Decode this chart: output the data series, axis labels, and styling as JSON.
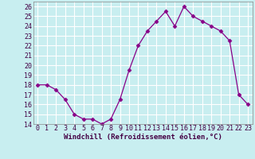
{
  "x": [
    0,
    1,
    2,
    3,
    4,
    5,
    6,
    7,
    8,
    9,
    10,
    11,
    12,
    13,
    14,
    15,
    16,
    17,
    18,
    19,
    20,
    21,
    22,
    23
  ],
  "y": [
    18.0,
    18.0,
    17.5,
    16.5,
    15.0,
    14.5,
    14.5,
    14.0,
    14.5,
    16.5,
    19.5,
    22.0,
    23.5,
    24.5,
    25.5,
    24.0,
    26.0,
    25.0,
    24.5,
    24.0,
    23.5,
    22.5,
    17.0,
    16.0
  ],
  "line_color": "#880088",
  "marker": "D",
  "marker_size": 2.5,
  "bg_color": "#c8eef0",
  "grid_color": "#ffffff",
  "xlabel": "Windchill (Refroidissement éolien,°C)",
  "xlabel_fontsize": 6.5,
  "tick_fontsize": 6.0,
  "ylim": [
    14,
    26.5
  ],
  "yticks": [
    14,
    15,
    16,
    17,
    18,
    19,
    20,
    21,
    22,
    23,
    24,
    25,
    26
  ],
  "xlim": [
    -0.5,
    23.5
  ],
  "xticks": [
    0,
    1,
    2,
    3,
    4,
    5,
    6,
    7,
    8,
    9,
    10,
    11,
    12,
    13,
    14,
    15,
    16,
    17,
    18,
    19,
    20,
    21,
    22,
    23
  ]
}
